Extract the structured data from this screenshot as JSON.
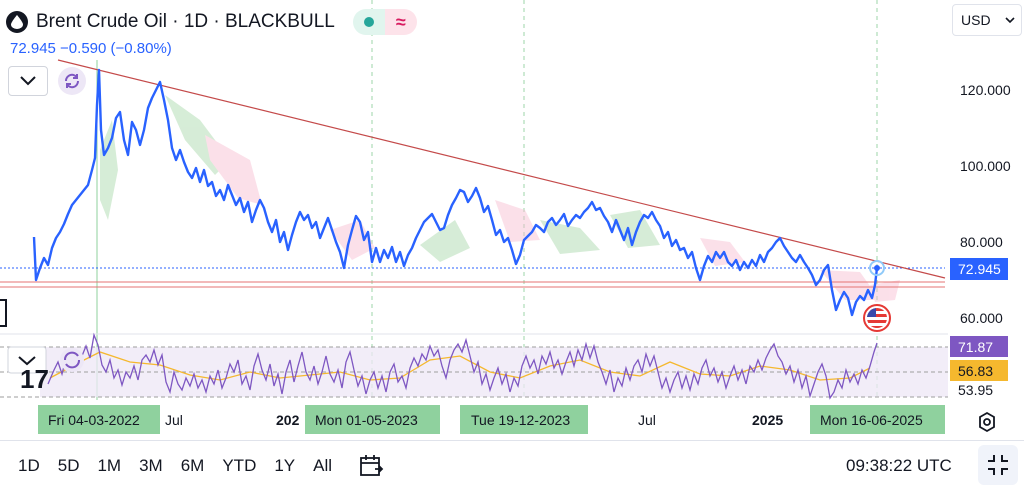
{
  "header": {
    "title": "Brent Crude Oil · 1D · BLACKBULL",
    "price_line": "72.945 −0.590 (−0.80%)",
    "currency": "USD"
  },
  "price_axis": {
    "ticks": [
      "120.000",
      "100.000",
      "80.000",
      "60.000"
    ],
    "current_price_label": "72.945"
  },
  "rsi_axis": {
    "labels": [
      "71.87",
      "56.83",
      "53.95"
    ]
  },
  "time_axis": {
    "labels": [
      {
        "text": "Fri 04-03-2022",
        "highlight": true
      },
      {
        "text": "Jul",
        "highlight": false
      },
      {
        "text": "202",
        "highlight": false,
        "bold": true
      },
      {
        "text": "Mon 01-05-2023",
        "highlight": true
      },
      {
        "text": "Tue 19-12-2023",
        "highlight": true
      },
      {
        "text": "Jul",
        "highlight": false
      },
      {
        "text": "2025",
        "highlight": false,
        "bold": true
      },
      {
        "text": "Mon 16-06-2025",
        "highlight": true
      }
    ]
  },
  "bottom_bar": {
    "ranges": [
      "1D",
      "5D",
      "1M",
      "3M",
      "6M",
      "YTD",
      "1Y",
      "All"
    ],
    "clock": "09:38:22 UTC"
  },
  "colors": {
    "price_line": "#2962ff",
    "trendline": "#c44a4a",
    "rsi_line": "#7e57c2",
    "rsi_ma": "#f5b82e",
    "rsi_band": "#ede7f6",
    "price_label_bg": "#2962ff",
    "rsi_label_bg": "#7e57c2",
    "highlight_bg": "#8fd19e"
  },
  "icons": {
    "symbol": "oil-drop-icon",
    "collapse": "chevron-down-icon",
    "refresh": "refresh-icon",
    "calendar": "calendar-icon",
    "fullscreen": "fullscreen-exit-icon",
    "settings": "gear-icon",
    "flag": "us-flag-icon"
  }
}
